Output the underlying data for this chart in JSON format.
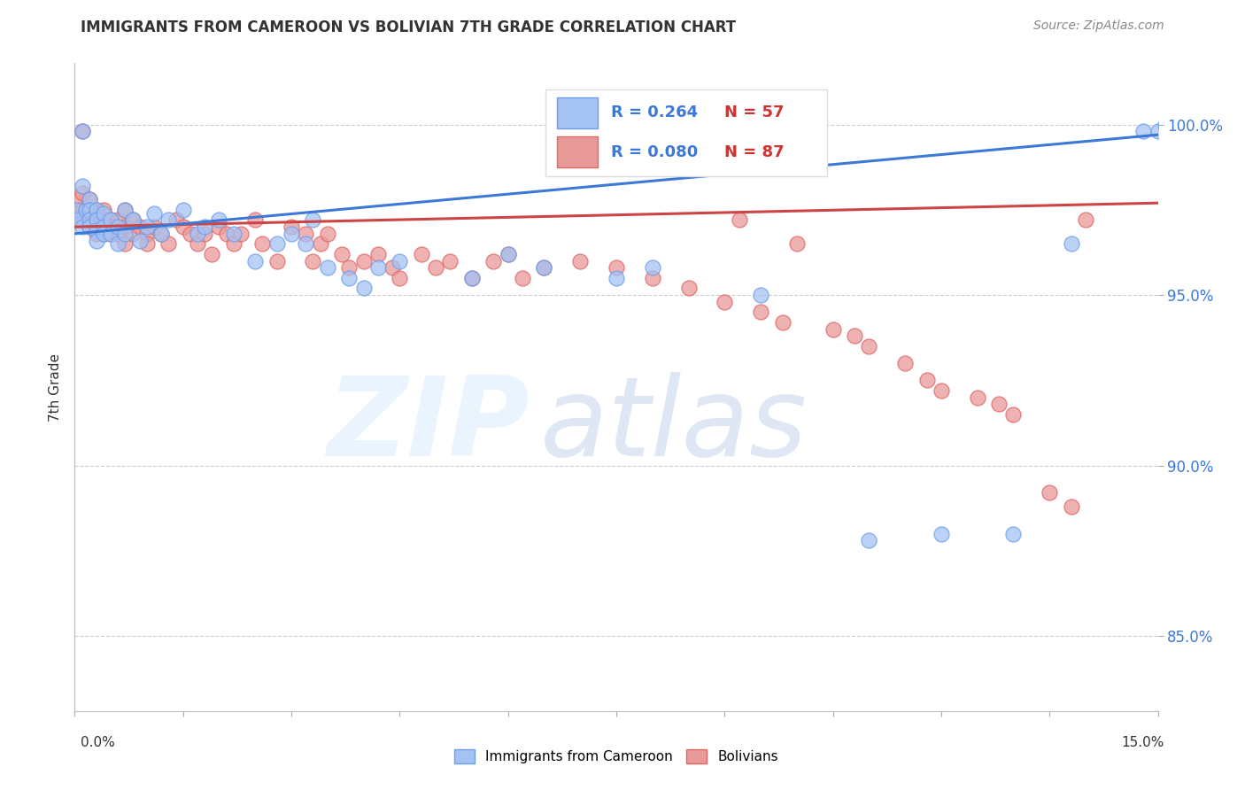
{
  "title": "IMMIGRANTS FROM CAMEROON VS BOLIVIAN 7TH GRADE CORRELATION CHART",
  "source": "Source: ZipAtlas.com",
  "ylabel": "7th Grade",
  "ytick_labels": [
    "85.0%",
    "90.0%",
    "95.0%",
    "100.0%"
  ],
  "ytick_values": [
    0.85,
    0.9,
    0.95,
    1.0
  ],
  "xlim": [
    0.0,
    0.15
  ],
  "ylim": [
    0.828,
    1.018
  ],
  "color_blue": "#a4c2f4",
  "color_blue_edge": "#6d9eeb",
  "color_pink": "#ea9999",
  "color_pink_edge": "#e06666",
  "color_blue_line": "#3c78d8",
  "color_pink_line": "#cc4444",
  "legend_r1": "R = 0.264",
  "legend_n1": "N = 57",
  "legend_r2": "R = 0.080",
  "legend_n2": "N = 87",
  "cam_x": [
    0.0003,
    0.0005,
    0.001,
    0.001,
    0.001,
    0.0015,
    0.002,
    0.002,
    0.002,
    0.002,
    0.003,
    0.003,
    0.003,
    0.003,
    0.004,
    0.004,
    0.004,
    0.005,
    0.005,
    0.006,
    0.006,
    0.007,
    0.007,
    0.008,
    0.009,
    0.01,
    0.011,
    0.012,
    0.013,
    0.015,
    0.017,
    0.018,
    0.02,
    0.022,
    0.025,
    0.028,
    0.03,
    0.032,
    0.033,
    0.035,
    0.038,
    0.04,
    0.042,
    0.045,
    0.055,
    0.06,
    0.065,
    0.075,
    0.08,
    0.095,
    0.11,
    0.12,
    0.13,
    0.138,
    0.148,
    0.15,
    0.151
  ],
  "cam_y": [
    0.975,
    0.972,
    0.998,
    0.982,
    0.97,
    0.975,
    0.978,
    0.975,
    0.972,
    0.97,
    0.975,
    0.972,
    0.969,
    0.966,
    0.974,
    0.97,
    0.968,
    0.972,
    0.968,
    0.97,
    0.965,
    0.968,
    0.975,
    0.972,
    0.966,
    0.97,
    0.974,
    0.968,
    0.972,
    0.975,
    0.968,
    0.97,
    0.972,
    0.968,
    0.96,
    0.965,
    0.968,
    0.965,
    0.972,
    0.958,
    0.955,
    0.952,
    0.958,
    0.96,
    0.955,
    0.962,
    0.958,
    0.955,
    0.958,
    0.95,
    0.878,
    0.88,
    0.88,
    0.965,
    0.998,
    0.998,
    1.0
  ],
  "bol_x": [
    0.0003,
    0.0005,
    0.001,
    0.001,
    0.001,
    0.001,
    0.0015,
    0.002,
    0.002,
    0.002,
    0.002,
    0.003,
    0.003,
    0.003,
    0.003,
    0.004,
    0.004,
    0.004,
    0.005,
    0.005,
    0.005,
    0.006,
    0.006,
    0.007,
    0.007,
    0.007,
    0.008,
    0.008,
    0.009,
    0.01,
    0.01,
    0.011,
    0.012,
    0.013,
    0.014,
    0.015,
    0.016,
    0.017,
    0.018,
    0.019,
    0.02,
    0.021,
    0.022,
    0.023,
    0.025,
    0.026,
    0.028,
    0.03,
    0.032,
    0.033,
    0.034,
    0.035,
    0.037,
    0.038,
    0.04,
    0.042,
    0.044,
    0.045,
    0.048,
    0.05,
    0.052,
    0.055,
    0.058,
    0.06,
    0.062,
    0.065,
    0.07,
    0.075,
    0.08,
    0.085,
    0.09,
    0.092,
    0.095,
    0.098,
    0.1,
    0.105,
    0.108,
    0.11,
    0.115,
    0.118,
    0.12,
    0.125,
    0.128,
    0.13,
    0.135,
    0.138,
    0.14
  ],
  "bol_y": [
    0.975,
    0.978,
    0.998,
    0.98,
    0.975,
    0.972,
    0.975,
    0.978,
    0.975,
    0.972,
    0.97,
    0.975,
    0.974,
    0.97,
    0.968,
    0.975,
    0.97,
    0.968,
    0.972,
    0.97,
    0.968,
    0.972,
    0.968,
    0.975,
    0.97,
    0.965,
    0.972,
    0.968,
    0.97,
    0.968,
    0.965,
    0.97,
    0.968,
    0.965,
    0.972,
    0.97,
    0.968,
    0.965,
    0.968,
    0.962,
    0.97,
    0.968,
    0.965,
    0.968,
    0.972,
    0.965,
    0.96,
    0.97,
    0.968,
    0.96,
    0.965,
    0.968,
    0.962,
    0.958,
    0.96,
    0.962,
    0.958,
    0.955,
    0.962,
    0.958,
    0.96,
    0.955,
    0.96,
    0.962,
    0.955,
    0.958,
    0.96,
    0.958,
    0.955,
    0.952,
    0.948,
    0.972,
    0.945,
    0.942,
    0.965,
    0.94,
    0.938,
    0.935,
    0.93,
    0.925,
    0.922,
    0.92,
    0.918,
    0.915,
    0.892,
    0.888,
    0.972
  ]
}
